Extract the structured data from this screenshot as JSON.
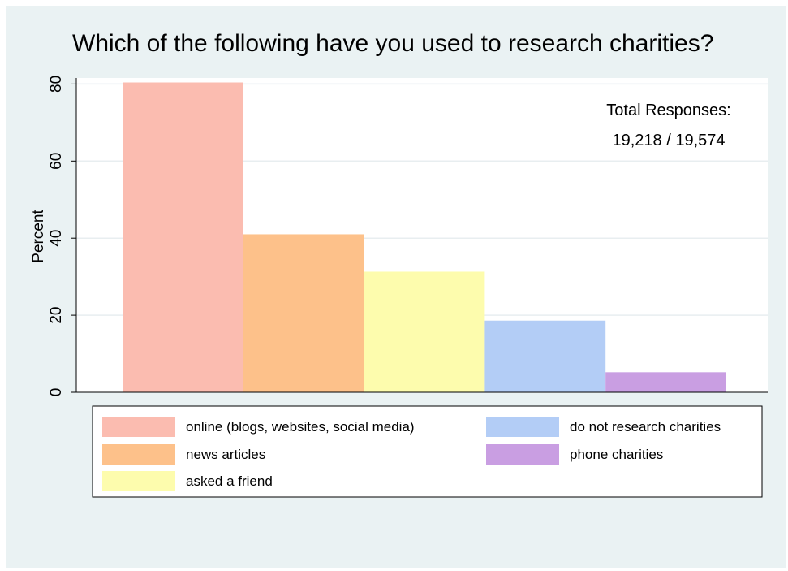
{
  "chart_data": {
    "type": "bar",
    "title": "Which of the following have you used to research charities?",
    "ylabel": "Percent",
    "xlabel": "",
    "ylim": [
      0,
      85
    ],
    "yticks": [
      0,
      20,
      40,
      60,
      80
    ],
    "grid": true,
    "categories": [
      "online (blogs, websites, social media)",
      "news articles",
      "asked a friend",
      "do not research charities",
      "phone charities"
    ],
    "values": [
      80.4,
      41.0,
      31.3,
      18.6,
      5.2
    ],
    "colors": [
      "#fbbcb0",
      "#fdc18a",
      "#fdfcad",
      "#b3cdf6",
      "#c99ee2"
    ],
    "annotation": [
      "Total Responses:",
      "19,218 / 19,574"
    ],
    "legend_position": "bottom"
  }
}
